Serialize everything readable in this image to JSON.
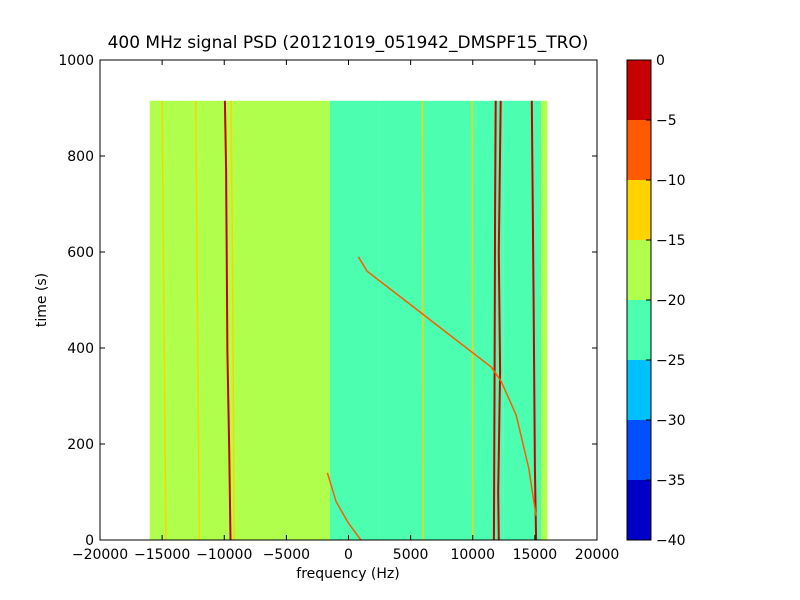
{
  "chart_data": {
    "type": "heatmap",
    "title": "400 MHz signal PSD (20121019_051942_DMSPF15_TRO)",
    "xlabel": "frequency (Hz)",
    "ylabel": "time (s)",
    "xlim": [
      -20000,
      20000
    ],
    "ylim": [
      0,
      1000
    ],
    "x_ticks": [
      -20000,
      -15000,
      -10000,
      -5000,
      0,
      5000,
      10000,
      15000,
      20000
    ],
    "x_tick_labels": [
      "−20000",
      "−15000",
      "−10000",
      "−5000",
      "0",
      "5000",
      "10000",
      "15000",
      "20000"
    ],
    "y_ticks": [
      0,
      200,
      400,
      600,
      800,
      1000
    ],
    "y_tick_labels": [
      "0",
      "200",
      "400",
      "600",
      "800",
      "1000"
    ],
    "data_extent": {
      "x": [
        -16000,
        16000
      ],
      "y": [
        0,
        915
      ]
    },
    "colorbar": {
      "min": -40,
      "max": 0,
      "ticks": [
        0,
        -5,
        -10,
        -15,
        -20,
        -25,
        -30,
        -35,
        -40
      ],
      "tick_labels": [
        "0",
        "−5",
        "−10",
        "−15",
        "−20",
        "−25",
        "−30",
        "−35",
        "−40"
      ],
      "bands": [
        {
          "from": -40,
          "to": -35,
          "color": "#0000c8"
        },
        {
          "from": -35,
          "to": -30,
          "color": "#0050ff"
        },
        {
          "from": -30,
          "to": -25,
          "color": "#00c0ff"
        },
        {
          "from": -25,
          "to": -20,
          "color": "#4cffb0"
        },
        {
          "from": -20,
          "to": -15,
          "color": "#b0ff4c"
        },
        {
          "from": -15,
          "to": -10,
          "color": "#ffd200"
        },
        {
          "from": -10,
          "to": -5,
          "color": "#ff5a00"
        },
        {
          "from": -5,
          "to": 0,
          "color": "#c80000"
        }
      ]
    },
    "regions": [
      {
        "x": [
          -16000,
          -1500
        ],
        "y": [
          0,
          915
        ],
        "level": -17.5
      },
      {
        "x": [
          -1500,
          2500
        ],
        "y": [
          0,
          915
        ],
        "level": -21
      },
      {
        "x": [
          2500,
          12500
        ],
        "y": [
          0,
          915
        ],
        "level": -22.5
      },
      {
        "x": [
          12500,
          15500
        ],
        "y": [
          0,
          915
        ],
        "level": -21
      },
      {
        "x": [
          15500,
          16000
        ],
        "y": [
          0,
          915
        ],
        "level": -17.5
      }
    ],
    "traces": [
      {
        "level": -12.5,
        "points": [
          [
            -14700,
            0
          ],
          [
            -15000,
            915
          ]
        ]
      },
      {
        "level": -12.5,
        "points": [
          [
            -12000,
            0
          ],
          [
            -12300,
            915
          ]
        ]
      },
      {
        "level": -2.5,
        "points": [
          [
            -9500,
            0
          ],
          [
            -9600,
            190
          ],
          [
            -9750,
            390
          ],
          [
            -9800,
            600
          ],
          [
            -9850,
            770
          ],
          [
            -9950,
            915
          ]
        ]
      },
      {
        "level": -12.5,
        "points": [
          [
            -9200,
            0
          ],
          [
            -9300,
            460
          ],
          [
            -9450,
            915
          ]
        ]
      },
      {
        "level": -12.5,
        "points": [
          [
            6000,
            0
          ],
          [
            5950,
            915
          ]
        ]
      },
      {
        "level": -12.5,
        "points": [
          [
            10000,
            0
          ],
          [
            9950,
            915
          ]
        ]
      },
      {
        "level": -2.5,
        "points": [
          [
            11700,
            0
          ],
          [
            11750,
            300
          ],
          [
            11800,
            690
          ],
          [
            11850,
            915
          ]
        ]
      },
      {
        "level": -2.5,
        "points": [
          [
            12100,
            0
          ],
          [
            12050,
            100
          ],
          [
            12200,
            350
          ],
          [
            12100,
            600
          ],
          [
            12250,
            915
          ]
        ]
      },
      {
        "level": -2.5,
        "points": [
          [
            15100,
            0
          ],
          [
            15000,
            150
          ],
          [
            14900,
            500
          ],
          [
            14750,
            915
          ]
        ]
      },
      {
        "level": -7.5,
        "points": [
          [
            1000,
            0
          ],
          [
            0,
            35
          ],
          [
            -1000,
            80
          ],
          [
            -1700,
            140
          ]
        ]
      },
      {
        "level": -7.5,
        "points": [
          [
            800,
            590
          ],
          [
            1500,
            560
          ],
          [
            3500,
            520
          ],
          [
            6000,
            470
          ],
          [
            8000,
            430
          ],
          [
            10000,
            390
          ],
          [
            11500,
            360
          ],
          [
            12300,
            330
          ],
          [
            13500,
            260
          ],
          [
            14500,
            150
          ],
          [
            15100,
            50
          ]
        ]
      }
    ]
  }
}
